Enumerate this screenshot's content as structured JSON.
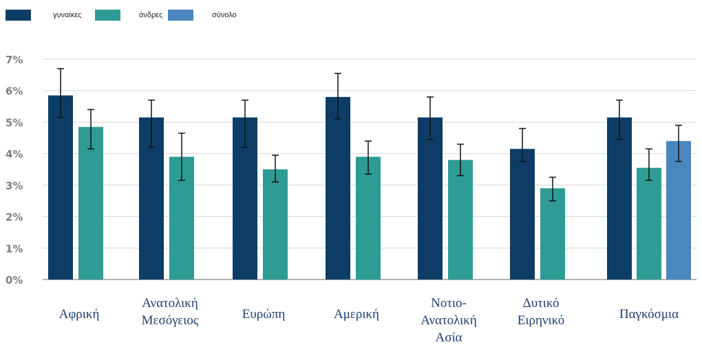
{
  "chart_data": {
    "type": "bar",
    "title": "",
    "xlabel": "",
    "ylabel": "",
    "ylim": [
      0,
      7
    ],
    "yticks": [
      0,
      1,
      2,
      3,
      4,
      5,
      6,
      7
    ],
    "ytick_labels": [
      "0%",
      "1%",
      "2%",
      "3%",
      "4%",
      "5%",
      "6%",
      "7%"
    ],
    "grid": true,
    "legend_position": "top-left",
    "error_bars": true,
    "categories": [
      [
        "Αφρική"
      ],
      [
        "Ανατολική",
        "Μεσόγειος"
      ],
      [
        "Ευρώπη"
      ],
      [
        "Αμερική"
      ],
      [
        "Νοτιο-",
        "Ανατολική",
        "Ασία"
      ],
      [
        "Δυτικό",
        "Ειρηνικό"
      ],
      [
        "Παγκόσμια"
      ]
    ],
    "series": [
      {
        "name": "γυναίκες",
        "color": "#0d3d66",
        "values": [
          5.85,
          5.15,
          5.15,
          5.8,
          5.15,
          4.15,
          5.15
        ],
        "error_low": [
          5.15,
          4.2,
          4.2,
          5.1,
          4.45,
          3.75,
          4.45
        ],
        "error_high": [
          6.7,
          5.7,
          5.7,
          6.55,
          5.8,
          4.8,
          5.7
        ]
      },
      {
        "name": "άνδρες",
        "color": "#2e9b95",
        "values": [
          4.85,
          3.9,
          3.5,
          3.9,
          3.8,
          2.9,
          3.55
        ],
        "error_low": [
          4.15,
          3.15,
          3.1,
          3.35,
          3.3,
          2.5,
          3.15
        ],
        "error_high": [
          5.4,
          4.65,
          3.95,
          4.4,
          4.3,
          3.25,
          4.15
        ]
      },
      {
        "name": "σύνολο",
        "color": "#4a86c0",
        "values": [
          null,
          null,
          null,
          null,
          null,
          null,
          4.4
        ],
        "error_low": [
          null,
          null,
          null,
          null,
          null,
          null,
          3.75
        ],
        "error_high": [
          null,
          null,
          null,
          null,
          null,
          null,
          4.9
        ]
      }
    ]
  }
}
